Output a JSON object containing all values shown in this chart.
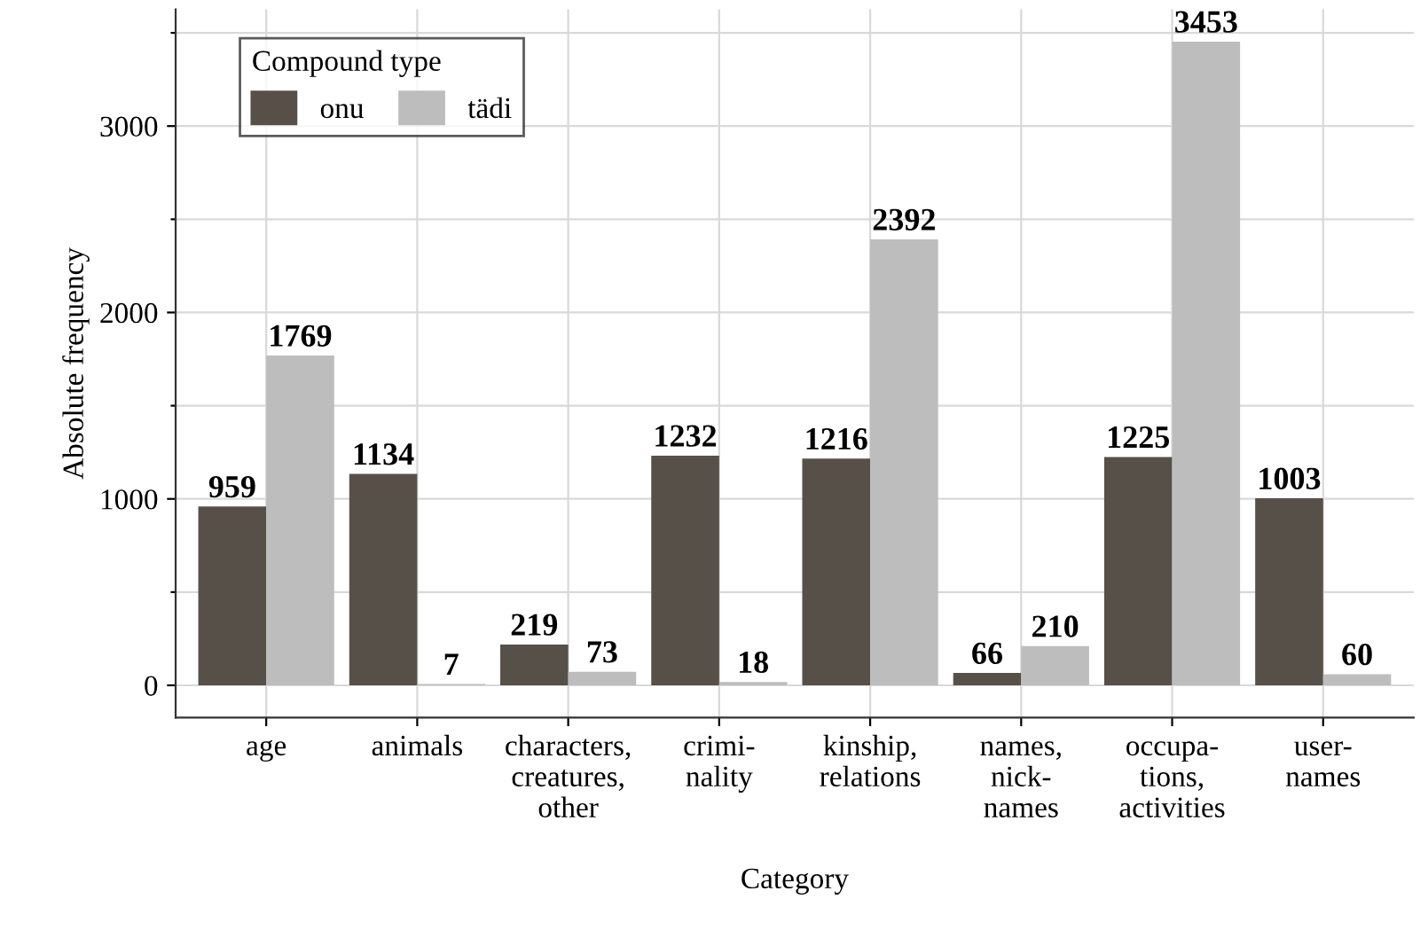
{
  "chart_data": {
    "type": "bar",
    "xlabel": "Category",
    "ylabel": "Absolute frequency",
    "legend_title": "Compound type",
    "categories": [
      "age",
      "animals",
      "characters,\ncreatures,\nother",
      "crimi-\nnality",
      "kinship,\nrelations",
      "names,\nnick-\nnames",
      "occupa-\ntions,\nactivities",
      "user-\nnames"
    ],
    "series": [
      {
        "name": "onu",
        "color": "#575049",
        "values": [
          959,
          1134,
          219,
          1232,
          1216,
          66,
          1225,
          1003
        ]
      },
      {
        "name": "tädi",
        "color": "#bdbdbd",
        "values": [
          1769,
          7,
          73,
          18,
          2392,
          210,
          3453,
          60
        ]
      }
    ],
    "ylim": [
      -173,
      3626
    ],
    "yticks": [
      0,
      {
        "value": 500,
        "label": null
      },
      1000,
      {
        "value": 1500,
        "label": null
      },
      2000,
      {
        "value": 2500,
        "label": null
      },
      3000,
      {
        "value": 3500,
        "label": null
      }
    ],
    "grid": true,
    "legend": "top left",
    "data_labels": true
  }
}
